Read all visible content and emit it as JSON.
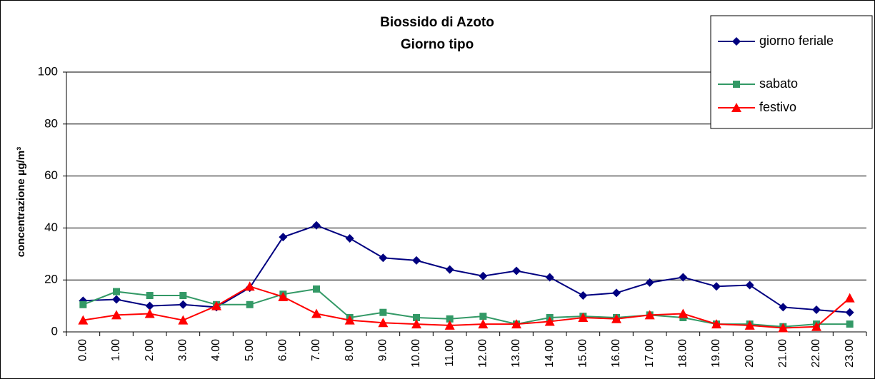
{
  "chart_data": {
    "type": "line",
    "title": "Biossido di Azoto",
    "subtitle": "Giorno tipo",
    "y_label": "concentrazione µg/m³",
    "categories": [
      "0.00",
      "1.00",
      "2.00",
      "3.00",
      "4.00",
      "5.00",
      "6.00",
      "7.00",
      "8.00",
      "9.00",
      "10.00",
      "11.00",
      "12.00",
      "13.00",
      "14.00",
      "15.00",
      "16.00",
      "17.00",
      "18.00",
      "19.00",
      "20.00",
      "21.00",
      "22.00",
      "23.00"
    ],
    "series": [
      {
        "name": "giorno feriale",
        "color": "#000080",
        "marker": "diamond",
        "values": [
          12,
          12.5,
          10,
          10.5,
          9.5,
          17,
          36.5,
          41,
          36,
          28.5,
          27.5,
          24,
          21.5,
          23.5,
          21,
          14,
          15,
          19,
          21,
          17.5,
          18,
          9.5,
          8.5,
          7.5
        ]
      },
      {
        "name": "sabato",
        "color": "#339966",
        "marker": "square",
        "values": [
          10.5,
          15.5,
          14,
          14,
          10.5,
          10.5,
          14.5,
          16.5,
          5.5,
          7.5,
          5.5,
          5,
          6,
          3,
          5.5,
          6,
          5.5,
          6.5,
          5.5,
          3,
          3,
          2,
          3,
          3
        ]
      },
      {
        "name": "festivo",
        "color": "#ff0000",
        "marker": "triangle",
        "values": [
          4.5,
          6.5,
          7,
          4.5,
          10,
          17.5,
          13.5,
          7,
          4.5,
          3.5,
          3,
          2.5,
          3,
          3,
          4,
          5.5,
          5,
          6.5,
          7,
          3,
          2.5,
          1.5,
          2,
          13
        ]
      }
    ],
    "ylim": [
      0,
      100
    ],
    "yticks": [
      0,
      20,
      40,
      60,
      80,
      100
    ],
    "grid": true,
    "legend": "top-right"
  }
}
